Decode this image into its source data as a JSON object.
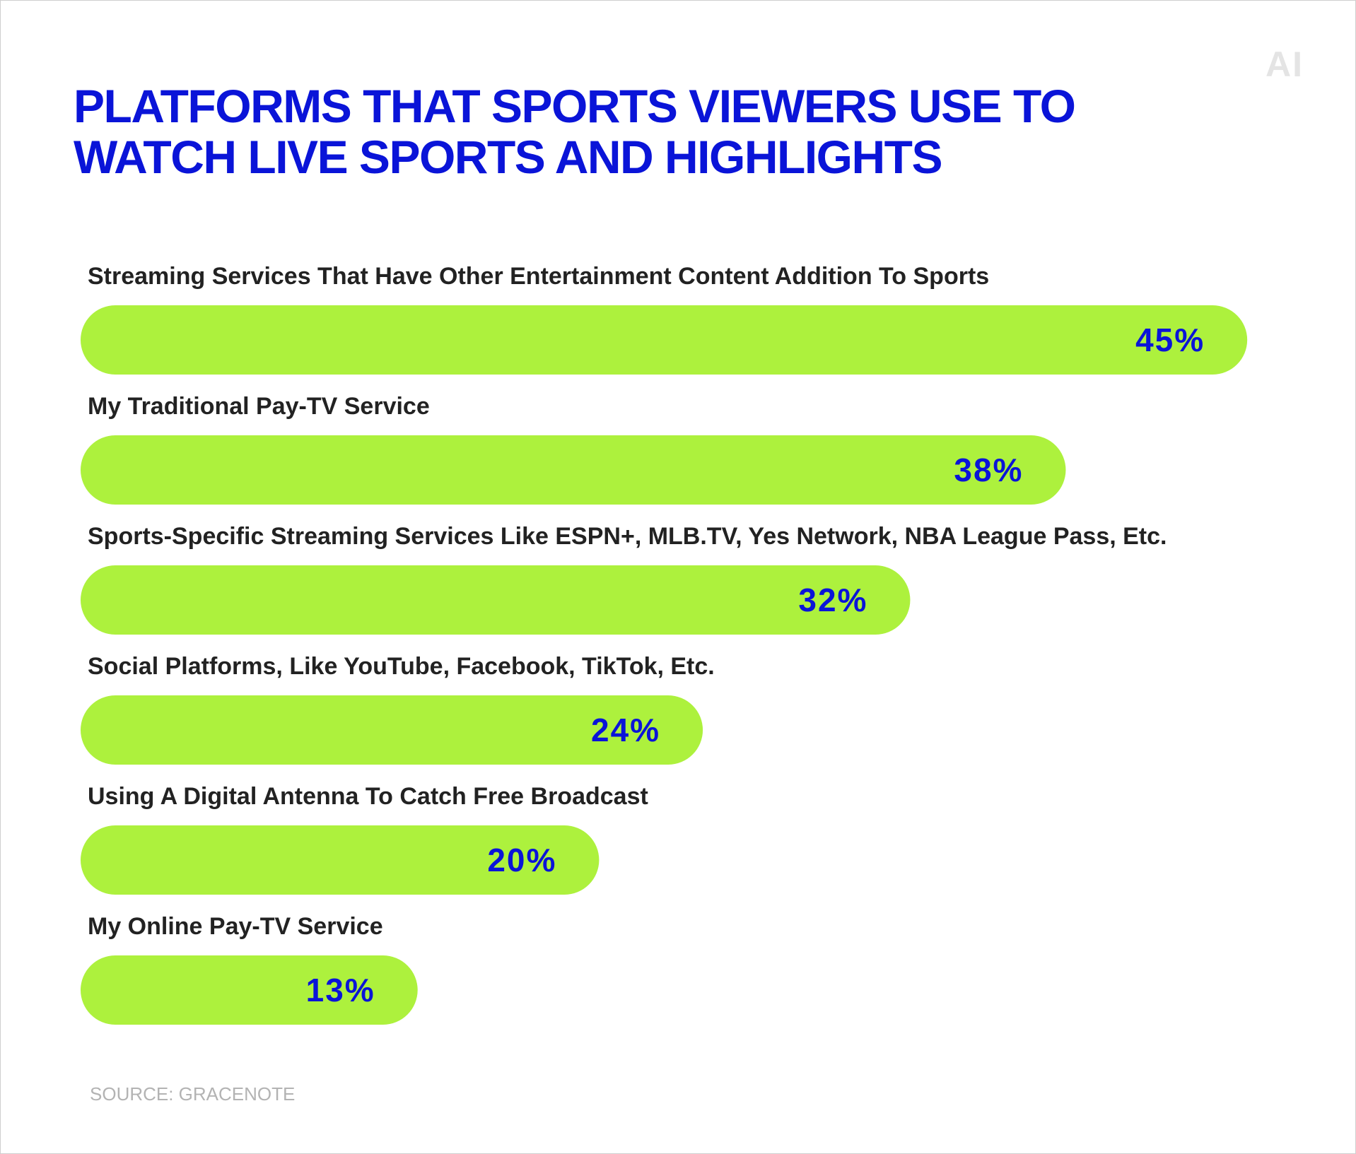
{
  "logo": {
    "text": "AI"
  },
  "title": {
    "line1": "PLATFORMS THAT SPORTS VIEWERS USE TO",
    "line2": "WATCH LIVE SPORTS AND HIGHLIGHTS"
  },
  "source": "SOURCE: GRACENOTE",
  "colors": {
    "title": "#0a14d8",
    "bar": "#adf13d",
    "value_label": "#0a14d8",
    "category_label": "#222222",
    "source": "#b3b3b3",
    "logo": "#e4e4e4"
  },
  "chart_data": {
    "type": "bar",
    "orientation": "horizontal",
    "categories": [
      "Streaming Services That Have Other Entertainment Content Addition To Sports",
      "My Traditional Pay-TV Service",
      "Sports-Specific Streaming Services Like ESPN+, MLB.TV, Yes Network, NBA League Pass, Etc.",
      "Social Platforms, Like YouTube, Facebook, TikTok, Etc.",
      "Using A Digital Antenna To Catch Free Broadcast",
      "My Online Pay-TV Service"
    ],
    "values": [
      45,
      38,
      32,
      24,
      20,
      13
    ],
    "value_labels": [
      "45%",
      "38%",
      "32%",
      "24%",
      "20%",
      "13%"
    ],
    "unit": "%",
    "grid": false,
    "legend": "none"
  }
}
